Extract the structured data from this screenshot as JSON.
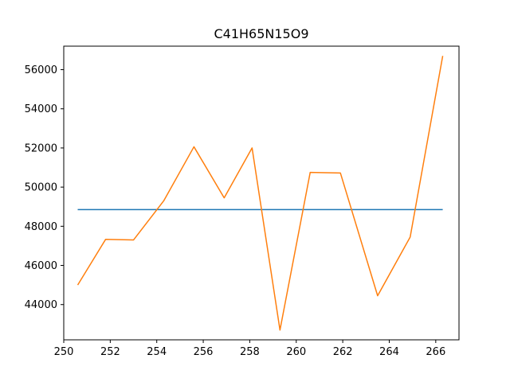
{
  "chart_data": {
    "type": "line",
    "title": "C41H65N15O9",
    "xlabel": "",
    "ylabel": "",
    "xlim": [
      250.0,
      267.0
    ],
    "ylim": [
      42200,
      57200
    ],
    "x_ticks": [
      250,
      252,
      254,
      256,
      258,
      260,
      262,
      264,
      266
    ],
    "y_ticks": [
      44000,
      46000,
      48000,
      50000,
      52000,
      54000,
      56000
    ],
    "grid": false,
    "series": [
      {
        "color": "#1f77b4",
        "x": [
          250.6,
          266.3
        ],
        "y": [
          48850,
          48850
        ]
      },
      {
        "color": "#ff7f0e",
        "x": [
          250.6,
          251.8,
          253.0,
          254.3,
          255.6,
          256.9,
          258.1,
          259.3,
          260.6,
          261.9,
          263.5,
          264.9,
          266.3
        ],
        "y": [
          45000,
          47330,
          47300,
          49300,
          52060,
          49450,
          52000,
          42700,
          50750,
          50720,
          44450,
          47450,
          56700
        ]
      }
    ]
  }
}
